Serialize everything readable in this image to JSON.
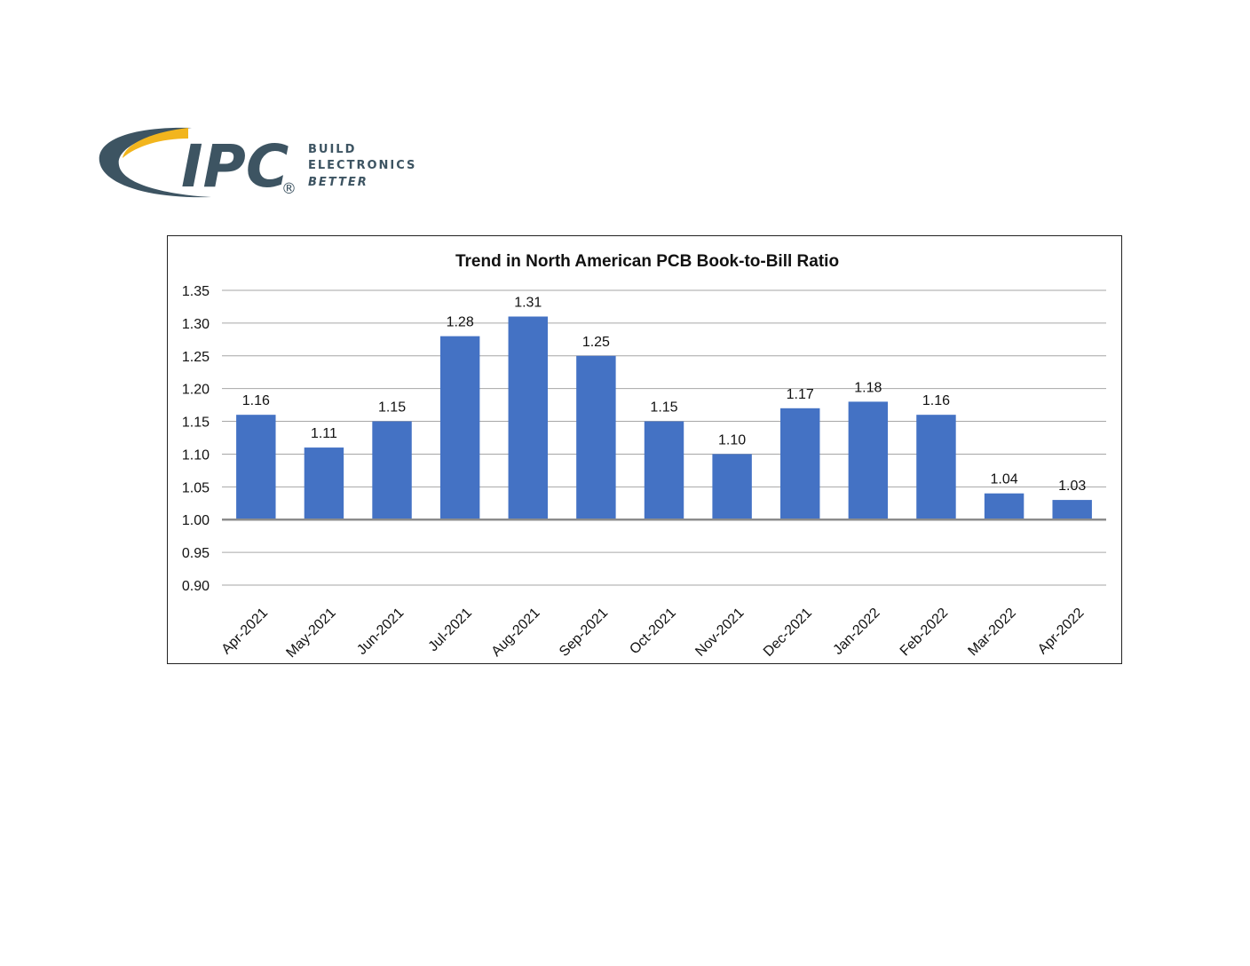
{
  "logo": {
    "brand": "IPC",
    "tagline": [
      "BUILD",
      "ELECTRONICS",
      "BETTER"
    ],
    "registered_mark": "®",
    "colors": {
      "primary": "#3d5462",
      "accent": "#f2b51d"
    }
  },
  "chart_data": {
    "type": "bar",
    "title": "Trend in North American PCB Book-to-Bill Ratio",
    "categories": [
      "Apr-2021",
      "May-2021",
      "Jun-2021",
      "Jul-2021",
      "Aug-2021",
      "Sep-2021",
      "Oct-2021",
      "Nov-2021",
      "Dec-2021",
      "Jan-2022",
      "Feb-2022",
      "Mar-2022",
      "Apr-2022"
    ],
    "values": [
      1.16,
      1.11,
      1.15,
      1.28,
      1.31,
      1.25,
      1.15,
      1.1,
      1.17,
      1.18,
      1.16,
      1.04,
      1.03
    ],
    "value_labels": [
      "1.16",
      "1.11",
      "1.15",
      "1.28",
      "1.31",
      "1.25",
      "1.15",
      "1.10",
      "1.17",
      "1.18",
      "1.16",
      "1.04",
      "1.03"
    ],
    "baseline": 1.0,
    "ylim": [
      0.9,
      1.35
    ],
    "yticks": [
      "1.35",
      "1.30",
      "1.25",
      "1.20",
      "1.15",
      "1.10",
      "1.05",
      "1.00",
      "0.95",
      "0.90"
    ],
    "xlabel": "",
    "ylabel": "",
    "grid": true,
    "legend": "none",
    "bar_color": "#4472c4",
    "grid_color": "#a6a6a6",
    "baseline_color": "#8c8c8c"
  }
}
